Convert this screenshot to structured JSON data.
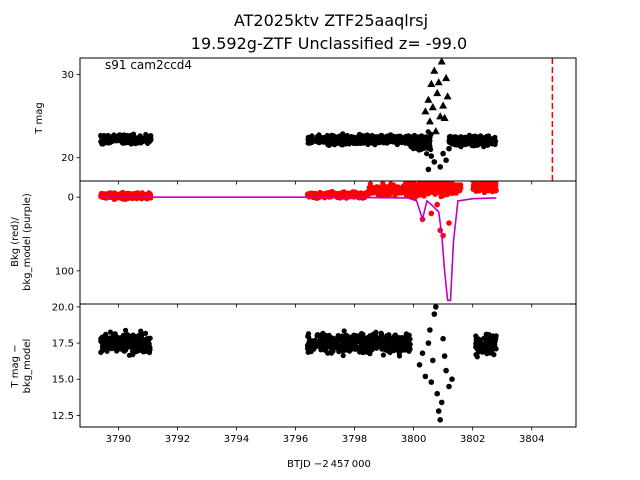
{
  "figure": {
    "title_line1": "AT2025ktv  ZTF25aaqlrsj",
    "title_line2": "19.592g-ZTF Unclassified z= -99.0",
    "annotation": "s91 cam2ccd4",
    "xlabel": "BTJD −2 457 000"
  },
  "chart_data": [
    {
      "type": "scatter",
      "panel": "top",
      "ylabel": "T mag",
      "xlim": [
        3788.7,
        3805.5
      ],
      "ylim": [
        32.0,
        17.2
      ],
      "y_inverted": true,
      "xticks": [
        3790,
        3792,
        3794,
        3796,
        3798,
        3800,
        3802,
        3804
      ],
      "yticks": [
        20,
        30
      ],
      "vline": {
        "x": 3804.7,
        "color": "#ff0000",
        "style": "dashed"
      },
      "series": [
        {
          "marker": "circle",
          "color": "#000000",
          "segments": [
            {
              "x": [
                3789.4,
                3791.1
              ],
              "y_mid": 22.2,
              "spread": 0.8
            },
            {
              "x": [
                3796.4,
                3799.9
              ],
              "y_mid": 22.2,
              "spread": 0.8
            },
            {
              "x": [
                3799.9,
                3800.6
              ],
              "y_mid": 21.8,
              "spread": 1.6
            },
            {
              "x": [
                3801.2,
                3802.8
              ],
              "y_mid": 22.0,
              "spread": 0.8
            }
          ],
          "points": [
            [
              3800.5,
              18.6
            ],
            [
              3800.7,
              19.5
            ],
            [
              3800.9,
              18.9
            ],
            [
              3801.0,
              20.5
            ],
            [
              3801.1,
              19.7
            ],
            [
              3801.2,
              21.1
            ],
            [
              3800.6,
              20.2
            ]
          ]
        },
        {
          "marker": "triangle",
          "color": "#000000",
          "points": [
            [
              3800.4,
              25.6
            ],
            [
              3800.5,
              27.0
            ],
            [
              3800.6,
              28.9
            ],
            [
              3800.7,
              30.5
            ],
            [
              3800.8,
              27.8
            ],
            [
              3800.9,
              25.0
            ],
            [
              3801.0,
              26.3
            ],
            [
              3801.1,
              29.6
            ],
            [
              3800.95,
              31.6
            ],
            [
              3800.55,
              24.4
            ],
            [
              3800.75,
              23.2
            ],
            [
              3801.05,
              24.8
            ],
            [
              3800.85,
              29.1
            ],
            [
              3801.15,
              27.4
            ],
            [
              3800.65,
              26.1
            ]
          ]
        }
      ]
    },
    {
      "type": "scatter",
      "panel": "middle",
      "ylabel": "Bkg (red)/\nbkg_model (purple)",
      "xlim": [
        3788.7,
        3805.5
      ],
      "ylim": [
        -22,
        145
      ],
      "yticks": [
        0,
        100
      ],
      "series": [
        {
          "marker": "circle",
          "color": "#ff0000",
          "segments": [
            {
              "x": [
                3789.4,
                3791.1
              ],
              "y_mid": -2,
              "spread": 6
            },
            {
              "x": [
                3796.4,
                3798.5
              ],
              "y_mid": -3,
              "spread": 5
            },
            {
              "x": [
                3798.5,
                3799.8
              ],
              "y_mid": -10,
              "spread": 10
            },
            {
              "x": [
                3799.8,
                3801.6
              ],
              "y_mid": -12,
              "spread": 16
            },
            {
              "x": [
                3802.0,
                3802.8
              ],
              "y_mid": -14,
              "spread": 12
            }
          ],
          "points": [
            [
              3800.3,
              30
            ],
            [
              3800.6,
              22
            ],
            [
              3800.9,
              45
            ],
            [
              3801.0,
              52
            ],
            [
              3800.8,
              10
            ],
            [
              3801.2,
              35
            ],
            [
              3800.5,
              -5
            ]
          ]
        },
        {
          "marker": "line",
          "color": "#bf00bf",
          "points": [
            [
              3789.4,
              0
            ],
            [
              3791.1,
              0
            ],
            [
              3796.4,
              0
            ],
            [
              3799.8,
              1
            ],
            [
              3800.1,
              5
            ],
            [
              3800.3,
              30
            ],
            [
              3800.45,
              5
            ],
            [
              3800.6,
              10
            ],
            [
              3800.85,
              20
            ],
            [
              3800.95,
              50
            ],
            [
              3801.05,
              100
            ],
            [
              3801.15,
              140
            ],
            [
              3801.25,
              140
            ],
            [
              3801.35,
              60
            ],
            [
              3801.5,
              5
            ],
            [
              3802.0,
              2
            ],
            [
              3802.8,
              1
            ]
          ]
        }
      ]
    },
    {
      "type": "scatter",
      "panel": "bottom",
      "ylabel": "T mag −\nbkg_model",
      "xlim": [
        3788.7,
        3805.5
      ],
      "ylim": [
        20.2,
        11.7
      ],
      "y_inverted": true,
      "yticks": [
        12.5,
        15.0,
        17.5,
        20.0
      ],
      "series": [
        {
          "marker": "circle",
          "color": "#000000",
          "segments": [
            {
              "x": [
                3789.4,
                3791.1
              ],
              "y_mid": 17.5,
              "spread": 1.0
            },
            {
              "x": [
                3796.4,
                3799.9
              ],
              "y_mid": 17.5,
              "spread": 1.0
            },
            {
              "x": [
                3802.1,
                3802.8
              ],
              "y_mid": 17.4,
              "spread": 0.9
            }
          ],
          "points": [
            [
              3800.2,
              16.0
            ],
            [
              3800.3,
              16.8
            ],
            [
              3800.4,
              15.2
            ],
            [
              3800.5,
              17.5
            ],
            [
              3800.6,
              14.8
            ],
            [
              3800.7,
              19.5
            ],
            [
              3800.8,
              14.0
            ],
            [
              3800.85,
              12.8
            ],
            [
              3800.9,
              12.2
            ],
            [
              3800.95,
              13.4
            ],
            [
              3801.0,
              17.8
            ],
            [
              3801.1,
              15.6
            ],
            [
              3801.2,
              14.5
            ],
            [
              3801.3,
              15.0
            ],
            [
              3800.75,
              20.0
            ],
            [
              3800.65,
              16.3
            ],
            [
              3800.55,
              18.4
            ],
            [
              3801.05,
              16.6
            ]
          ]
        }
      ]
    }
  ]
}
